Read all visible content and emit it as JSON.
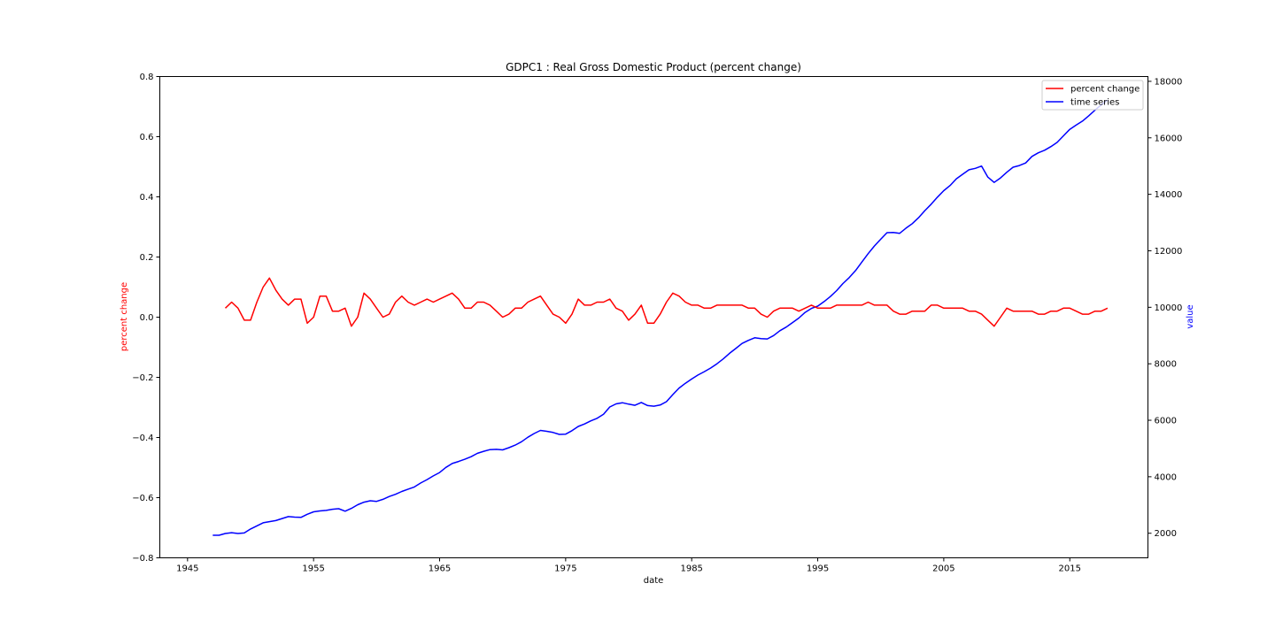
{
  "chart_data": {
    "type": "line",
    "title": "GDPC1 :  Real Gross Domestic Product (percent change)",
    "xlabel": "date",
    "ylabel_left": "percent change",
    "ylabel_right": "value",
    "xlim": [
      1942.8,
      2021.2
    ],
    "ylim_left": [
      -0.8,
      0.8
    ],
    "ylim_right": [
      1130,
      18170
    ],
    "x_ticks": [
      1945,
      1955,
      1965,
      1975,
      1985,
      1995,
      2005,
      2015
    ],
    "y_ticks_left": [
      -0.8,
      -0.6,
      -0.4,
      -0.2,
      0.0,
      0.2,
      0.4,
      0.6,
      0.8
    ],
    "y_ticks_right": [
      2000,
      4000,
      6000,
      8000,
      10000,
      12000,
      14000,
      16000,
      18000
    ],
    "grid": false,
    "legend": "top-right",
    "colors": {
      "percent_change": "#ff0000",
      "time_series": "#0000ff"
    },
    "series": [
      {
        "name": "percent change",
        "axis": "left",
        "x": [
          1948.0,
          1948.5,
          1949.0,
          1949.5,
          1950.0,
          1950.5,
          1951.0,
          1951.5,
          1952.0,
          1952.5,
          1953.0,
          1953.5,
          1954.0,
          1954.5,
          1955.0,
          1955.5,
          1956.0,
          1956.5,
          1957.0,
          1957.5,
          1958.0,
          1958.5,
          1959.0,
          1959.5,
          1960.0,
          1960.5,
          1961.0,
          1961.5,
          1962.0,
          1962.5,
          1963.0,
          1963.5,
          1964.0,
          1964.5,
          1965.0,
          1965.5,
          1966.0,
          1966.5,
          1967.0,
          1967.5,
          1968.0,
          1968.5,
          1969.0,
          1969.5,
          1970.0,
          1970.5,
          1971.0,
          1971.5,
          1972.0,
          1972.5,
          1973.0,
          1973.5,
          1974.0,
          1974.5,
          1975.0,
          1975.5,
          1976.0,
          1976.5,
          1977.0,
          1977.5,
          1978.0,
          1978.5,
          1979.0,
          1979.5,
          1980.0,
          1980.5,
          1981.0,
          1981.5,
          1982.0,
          1982.5,
          1983.0,
          1983.5,
          1984.0,
          1984.5,
          1985.0,
          1985.5,
          1986.0,
          1986.5,
          1987.0,
          1987.5,
          1988.0,
          1988.5,
          1989.0,
          1989.5,
          1990.0,
          1990.5,
          1991.0,
          1991.5,
          1992.0,
          1992.5,
          1993.0,
          1993.5,
          1994.0,
          1994.5,
          1995.0,
          1995.5,
          1996.0,
          1996.5,
          1997.0,
          1997.5,
          1998.0,
          1998.5,
          1999.0,
          1999.5,
          2000.0,
          2000.5,
          2001.0,
          2001.5,
          2002.0,
          2002.5,
          2003.0,
          2003.5,
          2004.0,
          2004.5,
          2005.0,
          2005.5,
          2006.0,
          2006.5,
          2007.0,
          2007.5,
          2008.0,
          2008.5,
          2009.0,
          2009.5,
          2010.0,
          2010.5,
          2011.0,
          2011.5,
          2012.0,
          2012.5,
          2013.0,
          2013.5,
          2014.0,
          2014.5,
          2015.0,
          2015.5,
          2016.0,
          2016.5,
          2017.0,
          2017.5,
          2018.0
        ],
        "values": [
          0.03,
          0.05,
          0.03,
          -0.01,
          -0.01,
          0.05,
          0.1,
          0.13,
          0.09,
          0.06,
          0.04,
          0.06,
          0.06,
          -0.02,
          0.0,
          0.07,
          0.07,
          0.02,
          0.02,
          0.03,
          -0.03,
          0.0,
          0.08,
          0.06,
          0.03,
          0.0,
          0.01,
          0.05,
          0.07,
          0.05,
          0.04,
          0.05,
          0.06,
          0.05,
          0.06,
          0.07,
          0.08,
          0.06,
          0.03,
          0.03,
          0.05,
          0.05,
          0.04,
          0.02,
          0.0,
          0.01,
          0.03,
          0.03,
          0.05,
          0.06,
          0.07,
          0.04,
          0.01,
          0.0,
          -0.02,
          0.01,
          0.06,
          0.04,
          0.04,
          0.05,
          0.05,
          0.06,
          0.03,
          0.02,
          -0.01,
          0.01,
          0.04,
          -0.02,
          -0.02,
          0.01,
          0.05,
          0.08,
          0.07,
          0.05,
          0.04,
          0.04,
          0.03,
          0.03,
          0.04,
          0.04,
          0.04,
          0.04,
          0.04,
          0.03,
          0.03,
          0.01,
          0.0,
          0.02,
          0.03,
          0.03,
          0.03,
          0.02,
          0.03,
          0.04,
          0.03,
          0.03,
          0.03,
          0.04,
          0.04,
          0.04,
          0.04,
          0.04,
          0.05,
          0.04,
          0.04,
          0.04,
          0.02,
          0.01,
          0.01,
          0.02,
          0.02,
          0.02,
          0.04,
          0.04,
          0.03,
          0.03,
          0.03,
          0.03,
          0.02,
          0.02,
          0.01,
          -0.01,
          -0.03,
          0.0,
          0.03,
          0.02,
          0.02,
          0.02,
          0.02,
          0.01,
          0.01,
          0.02,
          0.02,
          0.03,
          0.03,
          0.02,
          0.01,
          0.01,
          0.02,
          0.02,
          0.03
        ]
      },
      {
        "name": "time series",
        "axis": "right",
        "x": [
          1947.0,
          1947.5,
          1948.0,
          1948.5,
          1949.0,
          1949.5,
          1950.0,
          1950.5,
          1951.0,
          1951.5,
          1952.0,
          1952.5,
          1953.0,
          1953.5,
          1954.0,
          1954.5,
          1955.0,
          1955.5,
          1956.0,
          1956.5,
          1957.0,
          1957.5,
          1958.0,
          1958.5,
          1959.0,
          1959.5,
          1960.0,
          1960.5,
          1961.0,
          1961.5,
          1962.0,
          1962.5,
          1963.0,
          1963.5,
          1964.0,
          1964.5,
          1965.0,
          1965.5,
          1966.0,
          1966.5,
          1967.0,
          1967.5,
          1968.0,
          1968.5,
          1969.0,
          1969.5,
          1970.0,
          1970.5,
          1971.0,
          1971.5,
          1972.0,
          1972.5,
          1973.0,
          1973.5,
          1974.0,
          1974.5,
          1975.0,
          1975.5,
          1976.0,
          1976.5,
          1977.0,
          1977.5,
          1978.0,
          1978.5,
          1979.0,
          1979.5,
          1980.0,
          1980.5,
          1981.0,
          1981.5,
          1982.0,
          1982.5,
          1983.0,
          1983.5,
          1984.0,
          1984.5,
          1985.0,
          1985.5,
          1986.0,
          1986.5,
          1987.0,
          1987.5,
          1988.0,
          1988.5,
          1989.0,
          1989.5,
          1990.0,
          1990.5,
          1991.0,
          1991.5,
          1992.0,
          1992.5,
          1993.0,
          1993.5,
          1994.0,
          1994.5,
          1995.0,
          1995.5,
          1996.0,
          1996.5,
          1997.0,
          1997.5,
          1998.0,
          1998.5,
          1999.0,
          1999.5,
          2000.0,
          2000.5,
          2001.0,
          2001.5,
          2002.0,
          2002.5,
          2003.0,
          2003.5,
          2004.0,
          2004.5,
          2005.0,
          2005.5,
          2006.0,
          2006.5,
          2007.0,
          2007.5,
          2008.0,
          2008.5,
          2009.0,
          2009.5,
          2010.0,
          2010.5,
          2011.0,
          2011.5,
          2012.0,
          2012.5,
          2013.0,
          2013.5,
          2014.0,
          2014.5,
          2015.0,
          2015.5,
          2016.0,
          2016.5,
          2017.0,
          2017.5,
          2018.0
        ],
        "values": [
          1930,
          1930,
          1990,
          2020,
          1990,
          2010,
          2150,
          2260,
          2370,
          2410,
          2450,
          2520,
          2590,
          2570,
          2560,
          2670,
          2760,
          2790,
          2810,
          2850,
          2870,
          2780,
          2880,
          3010,
          3100,
          3150,
          3130,
          3200,
          3300,
          3380,
          3480,
          3560,
          3640,
          3780,
          3900,
          4030,
          4150,
          4330,
          4470,
          4540,
          4620,
          4710,
          4830,
          4900,
          4960,
          4970,
          4950,
          5030,
          5120,
          5240,
          5400,
          5530,
          5640,
          5610,
          5570,
          5500,
          5510,
          5630,
          5780,
          5870,
          5980,
          6070,
          6210,
          6470,
          6580,
          6620,
          6570,
          6530,
          6630,
          6520,
          6500,
          6540,
          6660,
          6910,
          7140,
          7310,
          7460,
          7600,
          7720,
          7850,
          8000,
          8170,
          8370,
          8540,
          8720,
          8830,
          8920,
          8890,
          8880,
          9000,
          9170,
          9300,
          9460,
          9620,
          9820,
          9960,
          10040,
          10200,
          10380,
          10590,
          10840,
          11050,
          11300,
          11600,
          11900,
          12170,
          12410,
          12640,
          12650,
          12620,
          12800,
          12960,
          13170,
          13420,
          13650,
          13900,
          14130,
          14310,
          14550,
          14710,
          14870,
          14920,
          15000,
          14610,
          14420,
          14580,
          14780,
          14960,
          15020,
          15110,
          15340,
          15470,
          15560,
          15690,
          15840,
          16070,
          16300,
          16450,
          16590,
          16780,
          16980,
          17170,
          17330
        ]
      }
    ]
  }
}
